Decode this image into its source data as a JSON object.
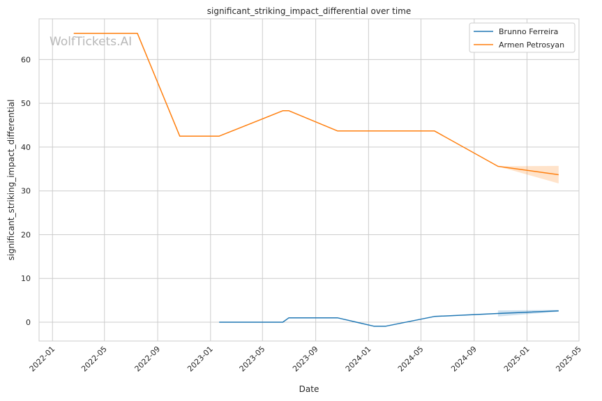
{
  "chart_data": {
    "type": "line",
    "title": "significant_striking_impact_differential over time",
    "xlabel": "Date",
    "ylabel": "significant_striking_impact_differential",
    "watermark": "WolfTickets.AI",
    "x_ticks": [
      "2022-01",
      "2022-05",
      "2022-09",
      "2023-01",
      "2023-05",
      "2023-09",
      "2024-01",
      "2024-05",
      "2024-09",
      "2025-01",
      "2025-05"
    ],
    "y_ticks": [
      0,
      10,
      20,
      30,
      40,
      50,
      60
    ],
    "xlim": [
      "2021-12-01",
      "2025-05-01"
    ],
    "ylim": [
      -4.3,
      69.3
    ],
    "grid": true,
    "legend_position": "top-right",
    "series": [
      {
        "name": "Brunno Ferreira",
        "color": "#1f77b4",
        "points": [
          [
            "2023-01-21",
            0.0
          ],
          [
            "2023-06-17",
            0.0
          ],
          [
            "2023-07-01",
            1.0
          ],
          [
            "2023-10-21",
            1.0
          ],
          [
            "2024-01-13",
            -0.9
          ],
          [
            "2024-02-10",
            -0.9
          ],
          [
            "2024-06-01",
            1.3
          ],
          [
            "2024-10-26",
            2.0
          ],
          [
            "2025-03-15",
            2.6
          ]
        ],
        "band": [
          [
            "2024-10-26",
            1.3,
            2.7
          ],
          [
            "2025-03-15",
            2.4,
            2.8
          ]
        ]
      },
      {
        "name": "Armen Petrosyan",
        "color": "#ff7f0e",
        "points": [
          [
            "2022-02-19",
            66.0
          ],
          [
            "2022-07-16",
            66.0
          ],
          [
            "2022-10-22",
            42.5
          ],
          [
            "2023-01-21",
            42.5
          ],
          [
            "2023-06-17",
            48.3
          ],
          [
            "2023-07-01",
            48.3
          ],
          [
            "2023-10-21",
            43.7
          ],
          [
            "2024-06-01",
            43.7
          ],
          [
            "2024-10-26",
            35.6
          ],
          [
            "2025-03-15",
            33.7
          ]
        ],
        "band": [
          [
            "2024-10-26",
            35.6,
            35.6
          ],
          [
            "2025-03-15",
            31.7,
            35.7
          ]
        ]
      }
    ]
  }
}
